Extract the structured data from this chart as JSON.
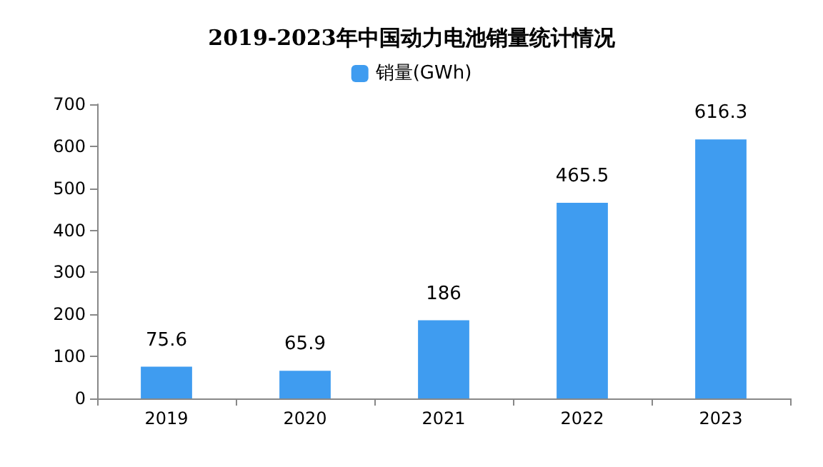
{
  "chart_data": {
    "type": "bar",
    "title": "2019-2023年中国动力电池销量统计情况",
    "categories": [
      "2019",
      "2020",
      "2021",
      "2022",
      "2023"
    ],
    "series": [
      {
        "name": "销量(GWh)",
        "color": "#3f9cf0",
        "values": [
          75.6,
          65.9,
          186,
          465.5,
          616.3
        ]
      }
    ],
    "ylim": [
      0,
      700
    ],
    "yticks": [
      0,
      100,
      200,
      300,
      400,
      500,
      600,
      700
    ],
    "grid": false,
    "legend": "top",
    "data_labels": true
  }
}
